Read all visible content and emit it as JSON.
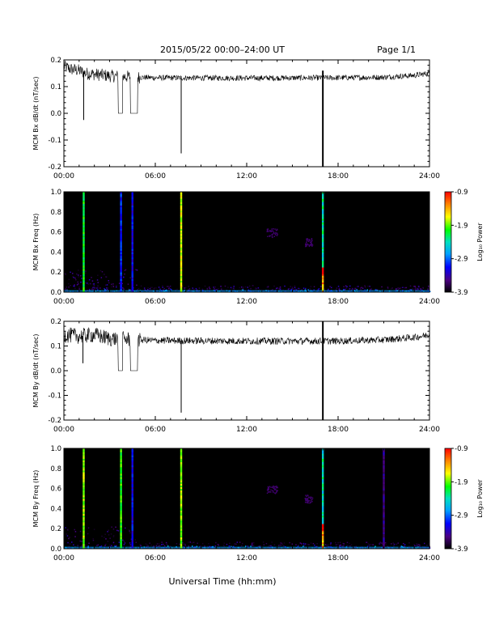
{
  "header": {
    "title": "2015/05/22  00:00–24:00 UT",
    "page": "Page 1/1"
  },
  "footer": {
    "xlabel": "Universal Time (hh:mm)"
  },
  "colors": {
    "background": "#ffffff",
    "ink": "#000000",
    "spec_bg": "#000000"
  },
  "colorbar": {
    "label": "Log₁₀ Power",
    "ticks": [
      "-0.9",
      "-1.9",
      "-2.9",
      "-3.9"
    ],
    "tick_values": [
      -0.9,
      -1.9,
      -2.9,
      -3.9
    ],
    "range": [
      -3.9,
      -0.9
    ]
  },
  "chart_data": [
    {
      "type": "line",
      "ylabel": "MCM Bx dB/dt (nT/sec)",
      "xlim": [
        0,
        24
      ],
      "ylim": [
        -0.2,
        0.2
      ],
      "x_ticks": [
        "00:00",
        "06:00",
        "12:00",
        "18:00",
        "24:00"
      ],
      "y_ticks": [
        "0.2",
        "0.1",
        "0.0",
        "-0.1",
        "-0.2"
      ],
      "y_tick_values": [
        0.2,
        0.1,
        0.0,
        -0.1,
        -0.2
      ],
      "baseline": [
        [
          0,
          0.175
        ],
        [
          0.5,
          0.165
        ],
        [
          1,
          0.16
        ],
        [
          1.4,
          0.15
        ],
        [
          3,
          0.14
        ],
        [
          5,
          0.135
        ],
        [
          6,
          0.133
        ],
        [
          12,
          0.132
        ],
        [
          18,
          0.133
        ],
        [
          21,
          0.135
        ],
        [
          23,
          0.142
        ],
        [
          24,
          0.15
        ]
      ],
      "noise_amplitude": 0.015,
      "gaps": [
        [
          3.55,
          3.85
        ],
        [
          4.35,
          4.85
        ]
      ],
      "gap_value": 0.0,
      "spikes": [
        {
          "x": 1.3,
          "y": -0.025
        },
        {
          "x": 7.7,
          "y": -0.15
        },
        {
          "x": 17.0,
          "y": -0.2,
          "y_top": 0.16,
          "thick": true
        }
      ]
    },
    {
      "type": "heatmap",
      "ylabel": "MCM Bx Freq (Hz)",
      "xlim": [
        0,
        24
      ],
      "ylim": [
        0,
        1.0
      ],
      "x_ticks": [
        "00:00",
        "06:00",
        "12:00",
        "18:00",
        "24:00"
      ],
      "y_ticks": [
        "1.0",
        "0.8",
        "0.6",
        "0.4",
        "0.2",
        "0.0"
      ],
      "y_tick_values": [
        1.0,
        0.8,
        0.6,
        0.4,
        0.2,
        0.0
      ],
      "vertical_bands": [
        {
          "x": 1.3,
          "level": -2.1
        },
        {
          "x": 3.75,
          "level": -3.1
        },
        {
          "x": 4.5,
          "level": -3.2
        },
        {
          "x": 7.7,
          "level": -1.7
        },
        {
          "x": 17.0,
          "level": -2.4,
          "hot": true
        }
      ],
      "patches": [
        {
          "x": [
            13.3,
            14.0
          ],
          "y": [
            0.55,
            0.64
          ],
          "level": -3.6
        },
        {
          "x": [
            15.8,
            16.3
          ],
          "y": [
            0.46,
            0.54
          ],
          "level": -3.6
        }
      ]
    },
    {
      "type": "line",
      "ylabel": "MCM By dB/dt (nT/sec)",
      "xlim": [
        0,
        24
      ],
      "ylim": [
        -0.2,
        0.2
      ],
      "x_ticks": [
        "00:00",
        "06:00",
        "12:00",
        "18:00",
        "24:00"
      ],
      "y_ticks": [
        "0.2",
        "0.1",
        "0.0",
        "-0.1",
        "-0.2"
      ],
      "y_tick_values": [
        0.2,
        0.1,
        0.0,
        -0.1,
        -0.2
      ],
      "baseline": [
        [
          0,
          0.145
        ],
        [
          1,
          0.14
        ],
        [
          2,
          0.145
        ],
        [
          3,
          0.13
        ],
        [
          5,
          0.125
        ],
        [
          6,
          0.122
        ],
        [
          12,
          0.12
        ],
        [
          18,
          0.12
        ],
        [
          21,
          0.125
        ],
        [
          23,
          0.135
        ],
        [
          24,
          0.145
        ]
      ],
      "noise_amplitude": 0.02,
      "gaps": [
        [
          3.55,
          3.85
        ],
        [
          4.35,
          4.85
        ]
      ],
      "gap_value": 0.0,
      "spikes": [
        {
          "x": 1.25,
          "y": 0.03
        },
        {
          "x": 7.7,
          "y": -0.17
        },
        {
          "x": 17.0,
          "y": -0.2,
          "y_top": 0.2,
          "thick": true
        }
      ]
    },
    {
      "type": "heatmap",
      "ylabel": "MCM By Freq (Hz)",
      "xlim": [
        0,
        24
      ],
      "ylim": [
        0,
        1.0
      ],
      "x_ticks": [
        "00:00",
        "06:00",
        "12:00",
        "18:00",
        "24:00"
      ],
      "y_ticks": [
        "1.0",
        "0.8",
        "0.6",
        "0.4",
        "0.2",
        "0.0"
      ],
      "y_tick_values": [
        1.0,
        0.8,
        0.6,
        0.4,
        0.2,
        0.0
      ],
      "vertical_bands": [
        {
          "x": 1.3,
          "level": -1.8
        },
        {
          "x": 3.75,
          "level": -2.0
        },
        {
          "x": 4.5,
          "level": -3.2
        },
        {
          "x": 7.7,
          "level": -1.8
        },
        {
          "x": 17.0,
          "level": -2.4,
          "hot": true
        },
        {
          "x": 21.0,
          "level": -3.5
        }
      ],
      "patches": [
        {
          "x": [
            13.3,
            14.0
          ],
          "y": [
            0.55,
            0.64
          ],
          "level": -3.6
        },
        {
          "x": [
            15.8,
            16.3
          ],
          "y": [
            0.46,
            0.54
          ],
          "level": -3.6
        }
      ]
    }
  ]
}
